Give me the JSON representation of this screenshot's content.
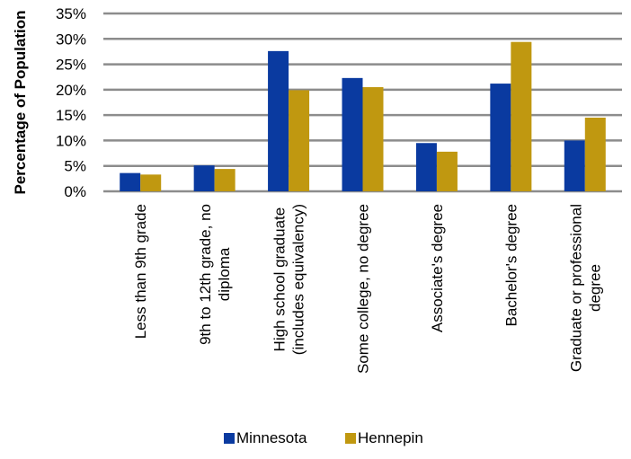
{
  "chart_data": {
    "type": "bar",
    "title": "",
    "ylabel": "Percentage of Population",
    "xlabel": "",
    "ylim": [
      0,
      35
    ],
    "yticks": [
      0,
      5,
      10,
      15,
      20,
      25,
      30,
      35
    ],
    "ytick_suffix": "%",
    "grid": true,
    "legend_position": "bottom",
    "categories": [
      [
        "Less than 9th grade"
      ],
      [
        "9th to 12th grade, no",
        "diploma"
      ],
      [
        "High school graduate",
        "(includes equivalency)"
      ],
      [
        "Some college, no degree"
      ],
      [
        "Associate's degree"
      ],
      [
        "Bachelor's degree"
      ],
      [
        "Graduate or professional",
        "degree"
      ]
    ],
    "series": [
      {
        "name": "Minnesota",
        "color": "#0A3AA0",
        "values": [
          3.6,
          5.1,
          27.6,
          22.3,
          9.5,
          21.2,
          10.0
        ]
      },
      {
        "name": "Hennepin",
        "color": "#C09810",
        "values": [
          3.3,
          4.4,
          19.9,
          20.5,
          7.8,
          29.4,
          14.5
        ]
      }
    ]
  }
}
